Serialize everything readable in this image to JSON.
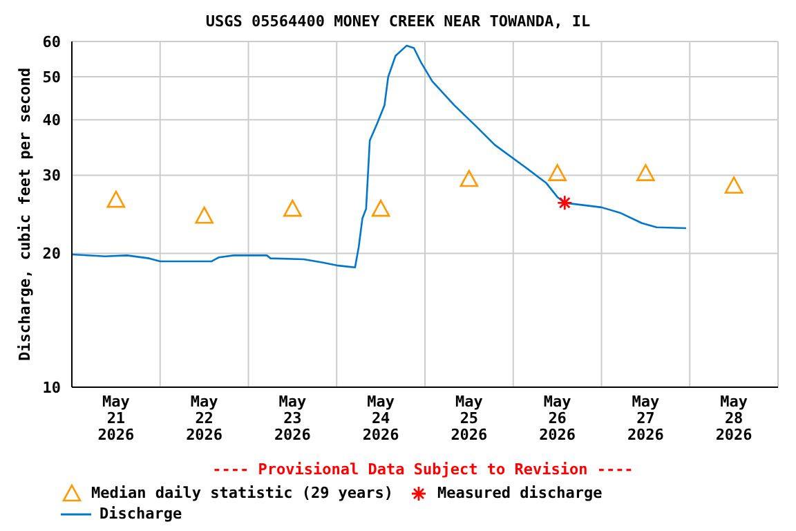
{
  "chart_data": {
    "type": "line",
    "title": "USGS 05564400 MONEY CREEK NEAR TOWANDA, IL",
    "ylabel": "Discharge, cubic feet per second",
    "annotations": [
      "---- Provisional Data Subject to Revision ----"
    ],
    "xlim": [
      "2026-05-21",
      "2026-05-29"
    ],
    "xticks": [
      {
        "value": "2026-05-21",
        "label": null
      },
      {
        "value": "2026-05-21T12:00",
        "label": "May 21 2026"
      },
      {
        "value": "2026-05-22",
        "label": null
      },
      {
        "value": "2026-05-22T12:00",
        "label": "May 22 2026"
      },
      {
        "value": "2026-05-23",
        "label": null
      },
      {
        "value": "2026-05-23T12:00",
        "label": "May 23 2026"
      },
      {
        "value": "2026-05-24",
        "label": null
      },
      {
        "value": "2026-05-24T12:00",
        "label": "May 24 2026"
      },
      {
        "value": "2026-05-25",
        "label": null
      },
      {
        "value": "2026-05-25T12:00",
        "label": "May 25 2026"
      },
      {
        "value": "2026-05-26",
        "label": null
      },
      {
        "value": "2026-05-26T12:00",
        "label": "May 26 2026"
      },
      {
        "value": "2026-05-27",
        "label": null
      },
      {
        "value": "2026-05-27T12:00",
        "label": "May 27 2026"
      },
      {
        "value": "2026-05-28",
        "label": null
      },
      {
        "value": "2026-05-28T12:00",
        "label": "May 28 2026"
      },
      {
        "value": "2026-05-29",
        "label": null
      }
    ],
    "ylim": [
      10,
      60
    ],
    "yticks": [
      10,
      20,
      30,
      40,
      50,
      60
    ],
    "log": "y",
    "grid": true,
    "legend": "bottom",
    "series": [
      {
        "name": "Median daily statistic (29 years)",
        "type": "scatter",
        "marker": "triangle",
        "color": "#ff9900",
        "x": [
          "2026-05-21T12:00",
          "2026-05-22T12:00",
          "2026-05-23T12:00",
          "2026-05-24T12:00",
          "2026-05-25T12:00",
          "2026-05-26T12:00",
          "2026-05-27T12:00",
          "2026-05-28T12:00"
        ],
        "values": [
          26.4,
          24.3,
          25.2,
          25.2,
          29.4,
          30.3,
          30.3,
          28.4
        ]
      },
      {
        "name": "Measured discharge",
        "type": "scatter",
        "marker": "cross",
        "color": "#ff0000",
        "x": [
          "2026-05-26T14:00"
        ],
        "values": [
          26.0
        ]
      },
      {
        "name": "Discharge",
        "marker": "none",
        "line_style": "solid",
        "color": "#0077cc",
        "x": [
          "2026-05-21T00:00",
          "2026-05-21T09:00",
          "2026-05-21T15:00",
          "2026-05-21T21:00",
          "2026-05-22T00:00",
          "2026-05-22T14:00",
          "2026-05-22T16:00",
          "2026-05-22T20:00",
          "2026-05-23T05:00",
          "2026-05-23T06:00",
          "2026-05-23T15:00",
          "2026-05-23T20:00",
          "2026-05-24T00:00",
          "2026-05-24T05:00",
          "2026-05-24T06:00",
          "2026-05-24T07:00",
          "2026-05-24T08:00",
          "2026-05-24T09:00",
          "2026-05-24T11:00",
          "2026-05-24T13:00",
          "2026-05-24T14:00",
          "2026-05-24T16:00",
          "2026-05-24T19:00",
          "2026-05-24T21:00",
          "2026-05-24T23:00",
          "2026-05-25T02:00",
          "2026-05-25T08:00",
          "2026-05-25T14:00",
          "2026-05-25T19:00",
          "2026-05-26T03:00",
          "2026-05-26T09:00",
          "2026-05-26T12:00",
          "2026-05-26T14:00",
          "2026-05-27T00:00",
          "2026-05-27T05:00",
          "2026-05-27T11:00",
          "2026-05-27T15:00",
          "2026-05-27T23:00"
        ],
        "values": [
          19.9,
          19.7,
          19.8,
          19.5,
          19.2,
          19.2,
          19.6,
          19.8,
          19.8,
          19.5,
          19.4,
          19.1,
          18.8,
          18.6,
          20.7,
          24.0,
          25.2,
          35.9,
          39.2,
          43.1,
          49.9,
          55.7,
          58.7,
          58.0,
          53.7,
          48.8,
          43.1,
          38.6,
          35.1,
          31.4,
          28.8,
          26.8,
          26.0,
          25.4,
          24.7,
          23.4,
          22.9,
          22.8
        ]
      }
    ]
  }
}
